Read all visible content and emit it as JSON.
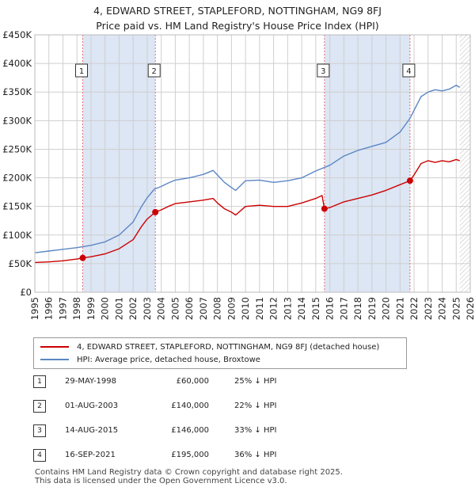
{
  "title_line1": "4, EDWARD STREET, STAPLEFORD, NOTTINGHAM, NG9 8FJ",
  "title_line2": "Price paid vs. HM Land Registry's House Price Index (HPI)",
  "colors": {
    "property": "#cc0000",
    "hpi": "#5b86c5",
    "shade": "#dce6f4",
    "grid": "#cfcfcf",
    "marker_line": "#e07070"
  },
  "chart_data": {
    "type": "line",
    "x_range": [
      1995,
      2026
    ],
    "ylim": [
      0,
      450000
    ],
    "y_ticks": [
      0,
      50000,
      100000,
      150000,
      200000,
      250000,
      300000,
      350000,
      400000,
      450000
    ],
    "y_tick_labels": [
      "£0",
      "£50K",
      "£100K",
      "£150K",
      "£200K",
      "£250K",
      "£300K",
      "£350K",
      "£400K",
      "£450K"
    ],
    "x_ticks": [
      "1995",
      "1996",
      "1997",
      "1998",
      "1999",
      "2000",
      "2001",
      "2002",
      "2003",
      "2004",
      "2005",
      "2006",
      "2007",
      "2008",
      "2009",
      "2010",
      "2011",
      "2012",
      "2013",
      "2014",
      "2015",
      "2016",
      "2017",
      "2018",
      "2019",
      "2020",
      "2021",
      "2022",
      "2023",
      "2024",
      "2025",
      "2026"
    ],
    "data_end": 2025.25,
    "series": [
      {
        "name": "4, EDWARD STREET, STAPLEFORD, NOTTINGHAM, NG9 8FJ (detached house)",
        "x": [
          1995.0,
          1996.0,
          1997.0,
          1998.0,
          1998.41,
          1999.0,
          2000.0,
          2001.0,
          2002.0,
          2002.6,
          2003.0,
          2003.58,
          2004.0,
          2004.5,
          2005.0,
          2006.0,
          2007.0,
          2007.7,
          2008.0,
          2008.5,
          2009.0,
          2009.3,
          2010.0,
          2011.0,
          2012.0,
          2013.0,
          2014.0,
          2015.0,
          2015.45,
          2015.62,
          2016.0,
          2017.0,
          2018.0,
          2019.0,
          2020.0,
          2021.0,
          2021.71,
          2022.0,
          2022.5,
          2023.0,
          2023.5,
          2024.0,
          2024.5,
          2025.0,
          2025.25
        ],
        "values": [
          52000,
          53000,
          55000,
          58000,
          60000,
          62000,
          67000,
          76000,
          92000,
          115000,
          128000,
          140000,
          144000,
          150000,
          155000,
          158000,
          161000,
          164000,
          156000,
          146000,
          140000,
          135000,
          150000,
          152000,
          150000,
          150000,
          156000,
          164000,
          169000,
          146000,
          148000,
          158000,
          164000,
          170000,
          178000,
          188000,
          195000,
          205000,
          225000,
          230000,
          227000,
          230000,
          228000,
          232000,
          230000
        ]
      },
      {
        "name": "HPI: Average price, detached house, Broxtowe",
        "x": [
          1995.0,
          1996.0,
          1997.0,
          1998.0,
          1999.0,
          2000.0,
          2001.0,
          2002.0,
          2002.6,
          2003.0,
          2003.5,
          2004.0,
          2004.5,
          2005.0,
          2006.0,
          2007.0,
          2007.7,
          2008.0,
          2008.5,
          2009.0,
          2009.3,
          2010.0,
          2011.0,
          2012.0,
          2013.0,
          2014.0,
          2015.0,
          2016.0,
          2017.0,
          2018.0,
          2019.0,
          2020.0,
          2021.0,
          2021.71,
          2022.0,
          2022.5,
          2023.0,
          2023.5,
          2024.0,
          2024.5,
          2025.0,
          2025.25
        ],
        "values": [
          69000,
          72000,
          75000,
          78000,
          82000,
          88000,
          100000,
          123000,
          150000,
          165000,
          180000,
          185000,
          191000,
          196000,
          200000,
          206000,
          213000,
          205000,
          192000,
          183000,
          178000,
          195000,
          196000,
          192000,
          195000,
          200000,
          212000,
          222000,
          238000,
          248000,
          255000,
          262000,
          280000,
          304000,
          318000,
          342000,
          350000,
          354000,
          352000,
          355000,
          362000,
          358000
        ]
      }
    ],
    "sales": [
      {
        "label": "1",
        "x": 1998.41,
        "value": 60000
      },
      {
        "label": "2",
        "x": 2003.58,
        "value": 140000
      },
      {
        "label": "3",
        "x": 2015.62,
        "value": 146000
      },
      {
        "label": "4",
        "x": 2021.71,
        "value": 195000
      }
    ],
    "shaded_periods": [
      [
        1998.41,
        2003.58
      ],
      [
        2015.62,
        2021.71
      ]
    ]
  },
  "legend": {
    "property": "4, EDWARD STREET, STAPLEFORD, NOTTINGHAM, NG9 8FJ (detached house)",
    "hpi": "HPI: Average price, detached house, Broxtowe"
  },
  "sales_table": [
    {
      "num": "1",
      "date": "29-MAY-1998",
      "price": "£60,000",
      "hpi": "25% ↓ HPI"
    },
    {
      "num": "2",
      "date": "01-AUG-2003",
      "price": "£140,000",
      "hpi": "22% ↓ HPI"
    },
    {
      "num": "3",
      "date": "14-AUG-2015",
      "price": "£146,000",
      "hpi": "33% ↓ HPI"
    },
    {
      "num": "4",
      "date": "16-SEP-2021",
      "price": "£195,000",
      "hpi": "36% ↓ HPI"
    }
  ],
  "footer_line1": "Contains HM Land Registry data © Crown copyright and database right 2025.",
  "footer_line2": "This data is licensed under the Open Government Licence v3.0."
}
